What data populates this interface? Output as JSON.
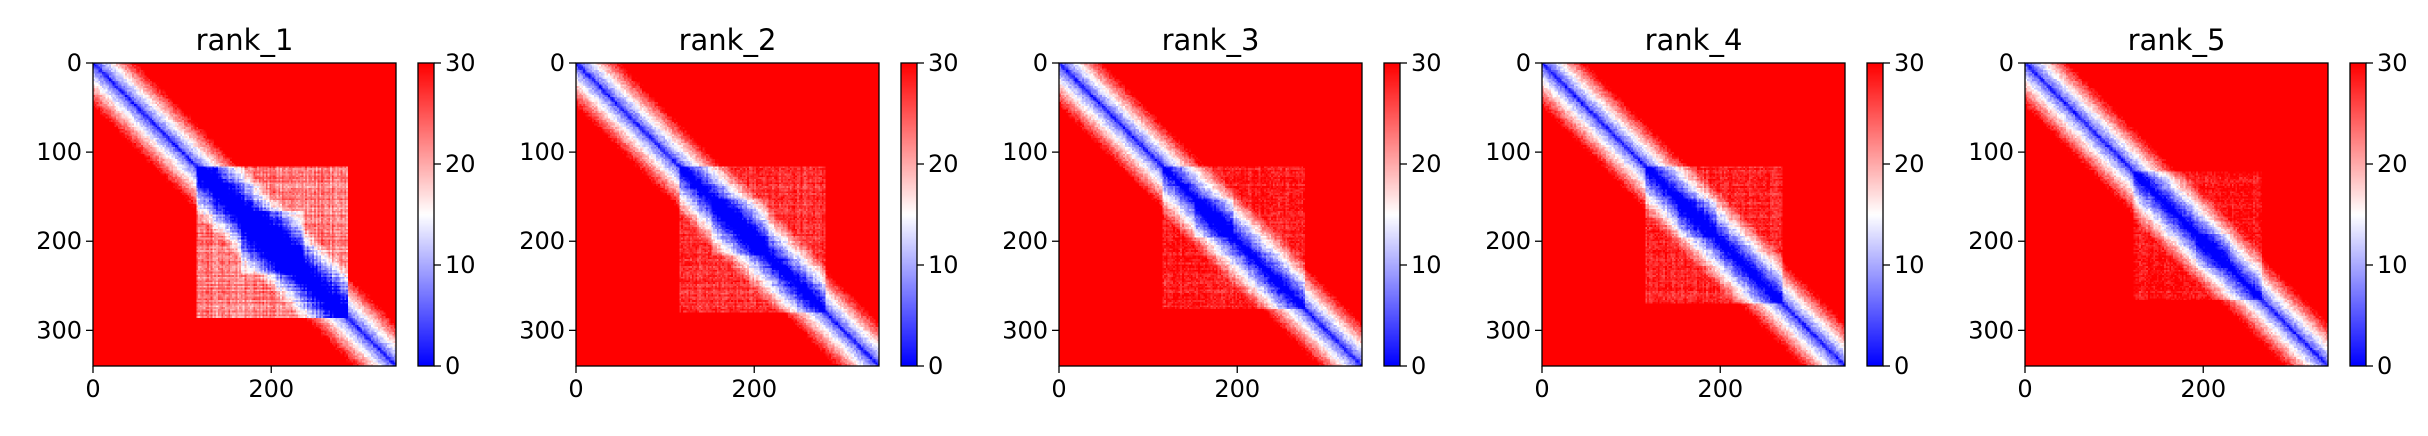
{
  "chart_data": [
    {
      "type": "heatmap",
      "title": "rank_1",
      "xlabel": "",
      "ylabel": "",
      "xlim": [
        0,
        340
      ],
      "ylim": [
        340,
        0
      ],
      "xticks": [
        "0",
        "200"
      ],
      "xtick_values": [
        0,
        200
      ],
      "yticks": [
        "0",
        "100",
        "200",
        "300"
      ],
      "ytick_values": [
        0,
        100,
        200,
        300
      ],
      "colorbar": {
        "min": 0,
        "max": 30,
        "ticks": [
          "0",
          "10",
          "20",
          "30"
        ],
        "tick_values": [
          0,
          10,
          20,
          30
        ],
        "colormap": "bwr"
      },
      "features": {
        "diagonal": "low",
        "block_region": [
          [
            115,
            285
          ],
          [
            115,
            285
          ]
        ],
        "block_strength": 0.75,
        "dense_core": [
          [
            165,
            235
          ],
          [
            165,
            235
          ]
        ]
      }
    },
    {
      "type": "heatmap",
      "title": "rank_2",
      "xlabel": "",
      "ylabel": "",
      "xlim": [
        0,
        340
      ],
      "ylim": [
        340,
        0
      ],
      "xticks": [
        "0",
        "200"
      ],
      "xtick_values": [
        0,
        200
      ],
      "yticks": [
        "0",
        "100",
        "200",
        "300"
      ],
      "ytick_values": [
        0,
        100,
        200,
        300
      ],
      "colorbar": {
        "min": 0,
        "max": 30,
        "ticks": [
          "0",
          "10",
          "20",
          "30"
        ],
        "tick_values": [
          0,
          10,
          20,
          30
        ],
        "colormap": "bwr"
      },
      "features": {
        "diagonal": "low",
        "block_region": [
          [
            115,
            280
          ],
          [
            115,
            280
          ]
        ],
        "block_strength": 0.45,
        "dense_core": [
          [
            150,
            215
          ],
          [
            150,
            215
          ]
        ]
      }
    },
    {
      "type": "heatmap",
      "title": "rank_3",
      "xlabel": "",
      "ylabel": "",
      "xlim": [
        0,
        340
      ],
      "ylim": [
        340,
        0
      ],
      "xticks": [
        "0",
        "200"
      ],
      "xtick_values": [
        0,
        200
      ],
      "yticks": [
        "0",
        "100",
        "200",
        "300"
      ],
      "ytick_values": [
        0,
        100,
        200,
        300
      ],
      "colorbar": {
        "min": 0,
        "max": 30,
        "ticks": [
          "0",
          "10",
          "20",
          "30"
        ],
        "tick_values": [
          0,
          10,
          20,
          30
        ],
        "colormap": "bwr"
      },
      "features": {
        "diagonal": "low",
        "block_region": [
          [
            115,
            275
          ],
          [
            115,
            275
          ]
        ],
        "block_strength": 0.4,
        "dense_core": [
          [
            150,
            195
          ],
          [
            150,
            195
          ]
        ]
      }
    },
    {
      "type": "heatmap",
      "title": "rank_4",
      "xlabel": "",
      "ylabel": "",
      "xlim": [
        0,
        340
      ],
      "ylim": [
        340,
        0
      ],
      "xticks": [
        "0",
        "200"
      ],
      "xtick_values": [
        0,
        200
      ],
      "yticks": [
        "0",
        "100",
        "200",
        "300"
      ],
      "ytick_values": [
        0,
        100,
        200,
        300
      ],
      "colorbar": {
        "min": 0,
        "max": 30,
        "ticks": [
          "0",
          "10",
          "20",
          "30"
        ],
        "tick_values": [
          0,
          10,
          20,
          30
        ],
        "colormap": "bwr"
      },
      "features": {
        "diagonal": "low",
        "block_region": [
          [
            115,
            270
          ],
          [
            115,
            270
          ]
        ],
        "block_strength": 0.4,
        "dense_core": [
          [
            150,
            195
          ],
          [
            150,
            195
          ]
        ]
      }
    },
    {
      "type": "heatmap",
      "title": "rank_5",
      "xlabel": "",
      "ylabel": "",
      "xlim": [
        0,
        340
      ],
      "ylim": [
        340,
        0
      ],
      "xticks": [
        "0",
        "200"
      ],
      "xtick_values": [
        0,
        200
      ],
      "yticks": [
        "0",
        "100",
        "200",
        "300"
      ],
      "ytick_values": [
        0,
        100,
        200,
        300
      ],
      "colorbar": {
        "min": 0,
        "max": 30,
        "ticks": [
          "0",
          "10",
          "20",
          "30"
        ],
        "tick_values": [
          0,
          10,
          20,
          30
        ],
        "colormap": "bwr"
      },
      "features": {
        "diagonal": "low",
        "block_region": [
          [
            120,
            265
          ],
          [
            120,
            265
          ]
        ],
        "block_strength": 0.35,
        "dense_core": [
          [
            190,
            230
          ],
          [
            190,
            230
          ]
        ]
      }
    }
  ],
  "colors": {
    "low": "#0000ff",
    "mid": "#ffffff",
    "high": "#ff0000"
  }
}
